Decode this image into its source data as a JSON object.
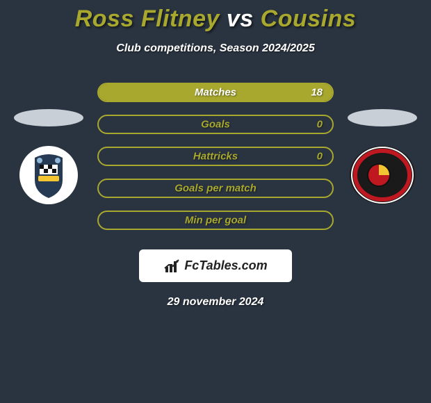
{
  "background_color": "#2a3440",
  "title": {
    "left": "Ross Flitney",
    "vs": "vs",
    "right": "Cousins",
    "left_color": "#a8a82f",
    "vs_color": "#ffffff",
    "right_color": "#a8a82f",
    "fontsize": 34
  },
  "subtitle": "Club competitions, Season 2024/2025",
  "player_slot_color": "#c9cfd6",
  "team_left": {
    "badge_bg": "#ffffff",
    "badge_border": "#ffffff",
    "inner_shape_color": "#263a53",
    "accent_color": "#f2c531"
  },
  "team_right": {
    "badge_bg": "#1a1a1a",
    "badge_border": "#c01820",
    "inner_shape_color": "#c01820",
    "accent_color": "#f2c531"
  },
  "stats": [
    {
      "label": "Matches",
      "left_value": null,
      "right_value": "18",
      "fill_from": "right",
      "fill_pct": 100,
      "fill_color": "#a8a82f",
      "border_color": "#a8a82f",
      "text_color": "#ffffff"
    },
    {
      "label": "Goals",
      "left_value": null,
      "right_value": "0",
      "fill_from": "none",
      "fill_pct": 0,
      "fill_color": "#a8a82f",
      "border_color": "#a8a82f",
      "text_color": "#a8a82f"
    },
    {
      "label": "Hattricks",
      "left_value": null,
      "right_value": "0",
      "fill_from": "none",
      "fill_pct": 0,
      "fill_color": "#a8a82f",
      "border_color": "#a8a82f",
      "text_color": "#a8a82f"
    },
    {
      "label": "Goals per match",
      "left_value": null,
      "right_value": null,
      "fill_from": "none",
      "fill_pct": 0,
      "fill_color": "#a8a82f",
      "border_color": "#a8a82f",
      "text_color": "#a8a82f"
    },
    {
      "label": "Min per goal",
      "left_value": null,
      "right_value": null,
      "fill_from": "none",
      "fill_pct": 0,
      "fill_color": "#a8a82f",
      "border_color": "#a8a82f",
      "text_color": "#a8a82f"
    }
  ],
  "brand": {
    "text": "FcTables.com",
    "icon_color": "#222222",
    "box_bg": "#ffffff"
  },
  "date": "29 november 2024"
}
